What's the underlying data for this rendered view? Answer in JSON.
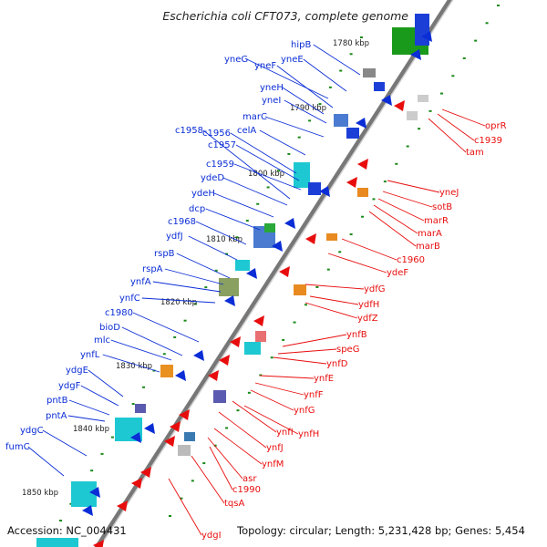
{
  "title": "Escherichia coli CFT073, complete genome",
  "footer": {
    "accession": "Accession: NC_004431",
    "info": "Topology: circular; Length: 5,231,428 bp; Genes: 5,454"
  },
  "colors": {
    "forward": "#0a2dd6",
    "reverse": "#e80d0d",
    "backbone": "#777777"
  },
  "kbp_ticks": [
    "1780 kbp",
    "1790 kbp",
    "1800 kbp",
    "1810 kbp",
    "1820 kbp",
    "1830 kbp",
    "1840 kbp",
    "1850 kbp"
  ],
  "forward_genes": [
    "hipB",
    "yneG",
    "yneF",
    "yneE",
    "yneH",
    "yneI",
    "marC",
    "celA",
    "c1958",
    "c1956",
    "c1957",
    "c1959",
    "ydeD",
    "ydeH",
    "dcp",
    "c1968",
    "ydfJ",
    "rspB",
    "rspA",
    "ynfA",
    "ynfC",
    "c1980",
    "bioD",
    "mlc",
    "ynfL",
    "ydgE",
    "ydgF",
    "pntB",
    "pntA",
    "ydgC",
    "fumC"
  ],
  "reverse_genes": [
    "oprR",
    "c1939",
    "tam",
    "yneJ",
    "sotB",
    "marR",
    "marA",
    "marB",
    "c1960",
    "ydeF",
    "ydfG",
    "ydfH",
    "ydfZ",
    "ynfB",
    "speG",
    "ynfD",
    "ynfE",
    "ynfF",
    "ynfG",
    "ynfI",
    "ynfH",
    "ynfJ",
    "ynfM",
    "asr",
    "c1990",
    "tqsA",
    "ydgI"
  ]
}
